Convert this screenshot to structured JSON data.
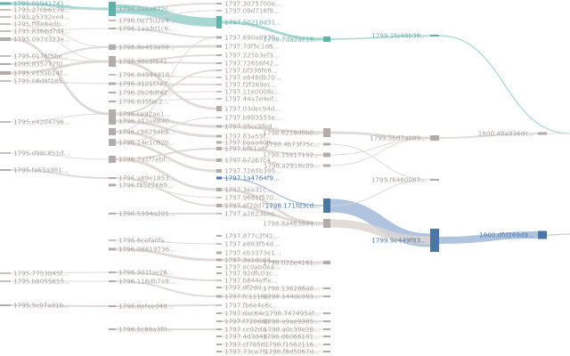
{
  "colors": {
    "teal_node": "#5fb3aa",
    "teal_link": "#9dd3cd",
    "blue_node": "#4a76a8",
    "blue_link": "#a9bedb",
    "gray_node": "#b4acaa",
    "gray_link": "#dcd6d4"
  },
  "columns": [
    {
      "year": "1795",
      "nodes": [
        {
          "label": "1795.01941741...",
          "group": "teal"
        },
        {
          "label": "1795.270b6178...",
          "group": "gray"
        },
        {
          "label": "1795.a5392ee4...",
          "group": "gray"
        },
        {
          "label": "1795.ff8e84db...",
          "group": "gray"
        },
        {
          "label": "1795.8368d7d4...",
          "group": "gray"
        },
        {
          "label": "1795.097d323e...",
          "group": "gray"
        },
        {
          "label": "1795.0176f5be...",
          "group": "gray"
        },
        {
          "label": "1795.835777f0...",
          "group": "gray"
        },
        {
          "label": "1795.e15ab14f...",
          "group": "gray"
        },
        {
          "label": "1795.08d8f285...",
          "group": "gray"
        },
        {
          "label": "1795.e4204796...",
          "group": "gray"
        },
        {
          "label": "1795.d98c851d...",
          "group": "gray"
        },
        {
          "label": "1795.fe65a981...",
          "group": "gray"
        },
        {
          "label": "1795.7753b45f...",
          "group": "gray"
        },
        {
          "label": "1795.b8055655...",
          "group": "gray"
        },
        {
          "label": "1795.5c07ad1b...",
          "group": "gray"
        }
      ]
    },
    {
      "year": "1796",
      "nodes": [
        {
          "label": "1796.da6e672c...",
          "group": "teal"
        },
        {
          "label": "1796.0e75d2e4...",
          "group": "gray"
        },
        {
          "label": "1796.1aadd1c6...",
          "group": "gray"
        },
        {
          "label": "1796.8e453a59...",
          "group": "gray"
        },
        {
          "label": "1796.90e3f641...",
          "group": "gray"
        },
        {
          "label": "1796.84994818...",
          "group": "gray"
        },
        {
          "label": "1796.3121f7e7...",
          "group": "gray"
        },
        {
          "label": "1796.2b28df42...",
          "group": "gray"
        },
        {
          "label": "1796.635fac2...",
          "group": "gray"
        },
        {
          "label": "1796.ce92ae1...",
          "group": "gray"
        },
        {
          "label": "1796.312e8840...",
          "group": "gray"
        },
        {
          "label": "1796.c96294b8...",
          "group": "gray"
        },
        {
          "label": "1796.14e1c82b...",
          "group": "gray"
        },
        {
          "label": "1796.7a1f7ebf...",
          "group": "gray"
        },
        {
          "label": "1796.a89e1853...",
          "group": "gray"
        },
        {
          "label": "1796.f85e7669...",
          "group": "gray"
        },
        {
          "label": "1796.5394a201...",
          "group": "gray"
        },
        {
          "label": "1796.6cefa0fa...",
          "group": "gray"
        },
        {
          "label": "1796.06819736...",
          "group": "gray"
        },
        {
          "label": "1796.301fae26...",
          "group": "gray"
        },
        {
          "label": "1796.116db7e8...",
          "group": "gray"
        },
        {
          "label": "1796.8efeed48...",
          "group": "gray"
        },
        {
          "label": "1796.5c89a3f0...",
          "group": "gray"
        }
      ]
    },
    {
      "year": "1797",
      "nodes": [
        {
          "label": "1797.3075700e...",
          "group": "gray"
        },
        {
          "label": "1797.09d716f8...",
          "group": "gray"
        },
        {
          "label": "1797.50218d31...",
          "group": "teal"
        },
        {
          "label": "1797.690a8930...",
          "group": "gray"
        },
        {
          "label": "1797.7df5c1d6...",
          "group": "gray"
        },
        {
          "label": "1797.225b3ef3...",
          "group": "gray"
        },
        {
          "label": "1797.72656f42...",
          "group": "gray"
        },
        {
          "label": "1797.bf336fe6...",
          "group": "gray"
        },
        {
          "label": "1797.e648db70...",
          "group": "gray"
        },
        {
          "label": "1797.f2f269ec...",
          "group": "gray"
        },
        {
          "label": "1797.11e0008c...",
          "group": "gray"
        },
        {
          "label": "1797.44a7e4ef...",
          "group": "gray"
        },
        {
          "label": "1797.03dec94d...",
          "group": "gray"
        },
        {
          "label": "1797.b993555e...",
          "group": "gray"
        },
        {
          "label": "1797.25cc9fed...",
          "group": "gray"
        },
        {
          "label": "1797.83a55f...",
          "group": "gray"
        },
        {
          "label": "1797.baaa408...",
          "group": "gray"
        },
        {
          "label": "1797.bf61a6f...",
          "group": "gray"
        },
        {
          "label": "1797.b7267c4...",
          "group": "gray"
        },
        {
          "label": "1797.7265b395...",
          "group": "gray"
        },
        {
          "label": "1797.1a4764f9...",
          "group": "blue"
        },
        {
          "label": "1797.3ea31c...",
          "group": "gray"
        },
        {
          "label": "1797.9661f570...",
          "group": "gray"
        },
        {
          "label": "1797.ef70d7...",
          "group": "gray"
        },
        {
          "label": "1797.a2823bee...",
          "group": "gray"
        },
        {
          "label": "1797.877c2f42...",
          "group": "gray"
        },
        {
          "label": "1797.e883f54d...",
          "group": "gray"
        },
        {
          "label": "1797.eb3373e1...",
          "group": "gray"
        },
        {
          "label": "1797.3a1dcd4...",
          "group": "gray"
        },
        {
          "label": "1797.ec0ab0ea...",
          "group": "gray"
        },
        {
          "label": "1797.92dfc03c...",
          "group": "gray"
        },
        {
          "label": "1797.b844effe...",
          "group": "gray"
        },
        {
          "label": "1797.df2dd...",
          "group": "gray"
        },
        {
          "label": "1797.fc1116e...",
          "group": "gray"
        },
        {
          "label": "1797.fb6e4e6c...",
          "group": "gray"
        },
        {
          "label": "1797.dac64c...",
          "group": "gray"
        },
        {
          "label": "1797.f72066b...",
          "group": "gray"
        },
        {
          "label": "1797.cc02da...",
          "group": "gray"
        },
        {
          "label": "1797.4d3d4d...",
          "group": "gray"
        },
        {
          "label": "1797.cf785d...",
          "group": "gray"
        },
        {
          "label": "1797.73ca75...",
          "group": "gray"
        }
      ]
    },
    {
      "year": "1798",
      "nodes": [
        {
          "label": "1798.7da2ae18...",
          "group": "teal"
        },
        {
          "label": "1798.6218d0b0...",
          "group": "gray"
        },
        {
          "label": "1798.4b73f75c...",
          "group": "gray"
        },
        {
          "label": "1798.35817192...",
          "group": "gray"
        },
        {
          "label": "1798.a2918c09...",
          "group": "gray"
        },
        {
          "label": "1798.171fd3cd...",
          "group": "blue"
        },
        {
          "label": "1798.8a463884...",
          "group": "gray"
        },
        {
          "label": "1798.022e4161...",
          "group": "gray"
        },
        {
          "label": "1798.136286a8...",
          "group": "gray"
        },
        {
          "label": "1798.1440c093...",
          "group": "gray"
        },
        {
          "label": "1798.747495af...",
          "group": "gray"
        },
        {
          "label": "1798.a9ae9385...",
          "group": "gray"
        },
        {
          "label": "1798.a0c39e28...",
          "group": "gray"
        },
        {
          "label": "1798.d6066181...",
          "group": "gray"
        },
        {
          "label": "1798.f1562116...",
          "group": "gray"
        },
        {
          "label": "1798.f8d5067d...",
          "group": "gray"
        }
      ]
    },
    {
      "year": "1799",
      "nodes": [
        {
          "label": "1799.1fe48b38...",
          "group": "teal"
        },
        {
          "label": "1799.5bd7a089...",
          "group": "gray"
        },
        {
          "label": "1799.f6480067...",
          "group": "gray"
        },
        {
          "label": "1799.9e449f83...",
          "group": "blue"
        }
      ]
    },
    {
      "year": "1800",
      "nodes": [
        {
          "label": "1800.48a936dc...",
          "group": "gray"
        },
        {
          "label": "1800.dfd269d9...",
          "group": "blue"
        }
      ]
    }
  ],
  "links": [
    {
      "s": [
        0,
        0
      ],
      "t": [
        1,
        0
      ],
      "v": 3,
      "g": "teal"
    },
    {
      "s": [
        1,
        0
      ],
      "t": [
        2,
        2
      ],
      "v": 10,
      "g": "teal"
    },
    {
      "s": [
        2,
        2
      ],
      "t": [
        3,
        0
      ],
      "v": 3,
      "g": "teal"
    },
    {
      "s": [
        3,
        0
      ],
      "t": [
        4,
        0
      ],
      "v": 1.5,
      "g": "teal"
    },
    {
      "s": [
        4,
        0
      ],
      "t": [
        6,
        0
      ],
      "v": 1.2,
      "g": "teal"
    },
    {
      "s": [
        0,
        1
      ],
      "t": [
        1,
        0
      ],
      "v": 1,
      "g": "gray"
    },
    {
      "s": [
        0,
        2
      ],
      "t": [
        1,
        3
      ],
      "v": 1,
      "g": "gray"
    },
    {
      "s": [
        0,
        3
      ],
      "t": [
        1,
        4
      ],
      "v": 1,
      "g": "gray"
    },
    {
      "s": [
        0,
        4
      ],
      "t": [
        1,
        2
      ],
      "v": 1,
      "g": "gray"
    },
    {
      "s": [
        0,
        5
      ],
      "t": [
        1,
        9
      ],
      "v": 3,
      "g": "gray"
    },
    {
      "s": [
        0,
        6
      ],
      "t": [
        1,
        4
      ],
      "v": 1,
      "g": "gray"
    },
    {
      "s": [
        0,
        7
      ],
      "t": [
        1,
        3
      ],
      "v": 2,
      "g": "gray"
    },
    {
      "s": [
        0,
        8
      ],
      "t": [
        1,
        4
      ],
      "v": 3,
      "g": "gray"
    },
    {
      "s": [
        0,
        9
      ],
      "t": [
        1,
        6
      ],
      "v": 1,
      "g": "gray"
    },
    {
      "s": [
        0,
        10
      ],
      "t": [
        1,
        9
      ],
      "v": 1,
      "g": "gray"
    },
    {
      "s": [
        0,
        11
      ],
      "t": [
        1,
        13
      ],
      "v": 1,
      "g": "gray"
    },
    {
      "s": [
        0,
        12
      ],
      "t": [
        1,
        14
      ],
      "v": 2,
      "g": "gray"
    },
    {
      "s": [
        0,
        13
      ],
      "t": [
        1,
        19
      ],
      "v": 1,
      "g": "gray"
    },
    {
      "s": [
        0,
        14
      ],
      "t": [
        1,
        20
      ],
      "v": 1,
      "g": "gray"
    },
    {
      "s": [
        0,
        15
      ],
      "t": [
        1,
        21
      ],
      "v": 2,
      "g": "gray"
    },
    {
      "s": [
        1,
        0
      ],
      "t": [
        2,
        0
      ],
      "v": 2,
      "g": "gray"
    },
    {
      "s": [
        1,
        1
      ],
      "t": [
        2,
        1
      ],
      "v": 1,
      "g": "gray"
    },
    {
      "s": [
        1,
        2
      ],
      "t": [
        2,
        3
      ],
      "v": 2,
      "g": "gray"
    },
    {
      "s": [
        1,
        3
      ],
      "t": [
        2,
        4
      ],
      "v": 3,
      "g": "gray"
    },
    {
      "s": [
        1,
        4
      ],
      "t": [
        2,
        5
      ],
      "v": 2,
      "g": "gray"
    },
    {
      "s": [
        1,
        4
      ],
      "t": [
        2,
        12
      ],
      "v": 3,
      "g": "gray"
    },
    {
      "s": [
        1,
        4
      ],
      "t": [
        2,
        6
      ],
      "v": 2,
      "g": "gray"
    },
    {
      "s": [
        1,
        5
      ],
      "t": [
        2,
        8
      ],
      "v": 1,
      "g": "gray"
    },
    {
      "s": [
        1,
        6
      ],
      "t": [
        2,
        9
      ],
      "v": 2,
      "g": "gray"
    },
    {
      "s": [
        1,
        7
      ],
      "t": [
        2,
        10
      ],
      "v": 1,
      "g": "gray"
    },
    {
      "s": [
        1,
        8
      ],
      "t": [
        2,
        11
      ],
      "v": 1,
      "g": "gray"
    },
    {
      "s": [
        1,
        9
      ],
      "t": [
        2,
        14
      ],
      "v": 3,
      "g": "gray"
    },
    {
      "s": [
        1,
        9
      ],
      "t": [
        2,
        7
      ],
      "v": 2,
      "g": "gray"
    },
    {
      "s": [
        1,
        10
      ],
      "t": [
        2,
        15
      ],
      "v": 3,
      "g": "gray"
    },
    {
      "s": [
        1,
        11
      ],
      "t": [
        2,
        18
      ],
      "v": 3,
      "g": "gray"
    },
    {
      "s": [
        1,
        11
      ],
      "t": [
        2,
        3
      ],
      "v": 1,
      "g": "gray"
    },
    {
      "s": [
        1,
        12
      ],
      "t": [
        2,
        19
      ],
      "v": 3,
      "g": "gray"
    },
    {
      "s": [
        1,
        12
      ],
      "t": [
        2,
        13
      ],
      "v": 1,
      "g": "gray"
    },
    {
      "s": [
        1,
        13
      ],
      "t": [
        2,
        21
      ],
      "v": 3,
      "g": "gray"
    },
    {
      "s": [
        1,
        13
      ],
      "t": [
        2,
        17
      ],
      "v": 2,
      "g": "gray"
    },
    {
      "s": [
        1,
        14
      ],
      "t": [
        2,
        23
      ],
      "v": 2,
      "g": "gray"
    },
    {
      "s": [
        1,
        15
      ],
      "t": [
        2,
        22
      ],
      "v": 1,
      "g": "gray"
    },
    {
      "s": [
        1,
        16
      ],
      "t": [
        2,
        24
      ],
      "v": 2,
      "g": "gray"
    },
    {
      "s": [
        1,
        17
      ],
      "t": [
        2,
        26
      ],
      "v": 1,
      "g": "gray"
    },
    {
      "s": [
        1,
        18
      ],
      "t": [
        2,
        28
      ],
      "v": 3,
      "g": "gray"
    },
    {
      "s": [
        1,
        19
      ],
      "t": [
        2,
        31
      ],
      "v": 2,
      "g": "gray"
    },
    {
      "s": [
        1,
        20
      ],
      "t": [
        2,
        33
      ],
      "v": 2,
      "g": "gray"
    },
    {
      "s": [
        1,
        21
      ],
      "t": [
        2,
        34
      ],
      "v": 2,
      "g": "gray"
    },
    {
      "s": [
        1,
        22
      ],
      "t": [
        2,
        37
      ],
      "v": 2,
      "g": "gray"
    },
    {
      "s": [
        2,
        20
      ],
      "t": [
        3,
        5
      ],
      "v": 1.5,
      "g": "blue"
    },
    {
      "s": [
        2,
        14
      ],
      "t": [
        3,
        1
      ],
      "v": 3,
      "g": "gray"
    },
    {
      "s": [
        2,
        16
      ],
      "t": [
        3,
        2
      ],
      "v": 1,
      "g": "gray"
    },
    {
      "s": [
        2,
        17
      ],
      "t": [
        3,
        3
      ],
      "v": 2,
      "g": "gray"
    },
    {
      "s": [
        2,
        18
      ],
      "t": [
        3,
        4
      ],
      "v": 1,
      "g": "gray"
    },
    {
      "s": [
        2,
        21
      ],
      "t": [
        3,
        6
      ],
      "v": 3,
      "g": "gray"
    },
    {
      "s": [
        2,
        23
      ],
      "t": [
        3,
        6
      ],
      "v": 3,
      "g": "gray"
    },
    {
      "s": [
        2,
        28
      ],
      "t": [
        3,
        7
      ],
      "v": 3,
      "g": "gray"
    },
    {
      "s": [
        2,
        32
      ],
      "t": [
        3,
        8
      ],
      "v": 1,
      "g": "gray"
    },
    {
      "s": [
        2,
        33
      ],
      "t": [
        3,
        9
      ],
      "v": 2,
      "g": "gray"
    },
    {
      "s": [
        2,
        35
      ],
      "t": [
        3,
        10
      ],
      "v": 1,
      "g": "gray"
    },
    {
      "s": [
        2,
        36
      ],
      "t": [
        3,
        11
      ],
      "v": 2,
      "g": "gray"
    },
    {
      "s": [
        2,
        37
      ],
      "t": [
        3,
        12
      ],
      "v": 1,
      "g": "gray"
    },
    {
      "s": [
        2,
        38
      ],
      "t": [
        3,
        13
      ],
      "v": 1,
      "g": "gray"
    },
    {
      "s": [
        2,
        39
      ],
      "t": [
        3,
        14
      ],
      "v": 1,
      "g": "gray"
    },
    {
      "s": [
        2,
        40
      ],
      "t": [
        3,
        15
      ],
      "v": 1,
      "g": "gray"
    },
    {
      "s": [
        3,
        5
      ],
      "t": [
        4,
        3
      ],
      "v": 15,
      "g": "blue"
    },
    {
      "s": [
        3,
        5
      ],
      "t": [
        4,
        2
      ],
      "v": 1,
      "g": "gray"
    },
    {
      "s": [
        3,
        6
      ],
      "t": [
        4,
        3
      ],
      "v": 9,
      "g": "gray"
    },
    {
      "s": [
        3,
        1
      ],
      "t": [
        4,
        1
      ],
      "v": 3,
      "g": "gray"
    },
    {
      "s": [
        3,
        2
      ],
      "t": [
        4,
        2
      ],
      "v": 1,
      "g": "gray"
    },
    {
      "s": [
        3,
        3
      ],
      "t": [
        4,
        1
      ],
      "v": 1,
      "g": "gray"
    },
    {
      "s": [
        3,
        4
      ],
      "t": [
        4,
        1
      ],
      "v": 1,
      "g": "gray"
    },
    {
      "s": [
        4,
        1
      ],
      "t": [
        5,
        0
      ],
      "v": 2,
      "g": "gray"
    },
    {
      "s": [
        4,
        3
      ],
      "t": [
        5,
        1
      ],
      "v": 8,
      "g": "blue"
    },
    {
      "s": [
        5,
        0
      ],
      "t": [
        6,
        0
      ],
      "v": 1,
      "g": "gray"
    },
    {
      "s": [
        5,
        1
      ],
      "t": [
        6,
        1
      ],
      "v": 1,
      "g": "blue"
    }
  ]
}
